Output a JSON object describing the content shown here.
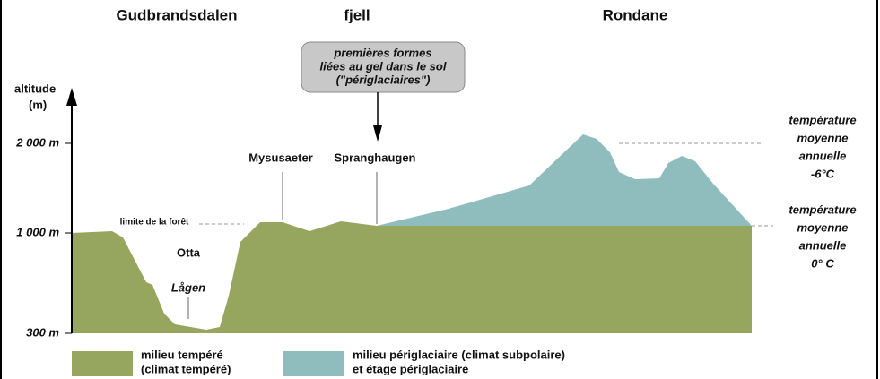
{
  "regions": [
    "Gudbrandsdalen",
    "fjell",
    "Rondane"
  ],
  "callout": [
    "premières formes",
    "liées au gel dans le sol",
    "(\"périglaciaires\")"
  ],
  "axis": {
    "title": [
      "altitude",
      "(m)"
    ],
    "ticks": [
      "2 000 m",
      "1 000 m",
      "300 m"
    ]
  },
  "places": {
    "mysusaeter": "Mysusaeter",
    "spranghaugen": "Spranghaugen",
    "forest_limit": "limite de la forêt",
    "otta": "Otta",
    "lagen": "Lågen"
  },
  "annotations": [
    [
      "température",
      "moyenne",
      "annuelle",
      "-6°C"
    ],
    [
      "température",
      "moyenne",
      "annuelle",
      "0° C"
    ]
  ],
  "legend": [
    {
      "lines": [
        "milieu tempéré",
        "(climat tempéré)"
      ]
    },
    {
      "lines": [
        "milieu périglaciaire (climat subpolaire)",
        "et étage périglaciaire"
      ]
    }
  ]
}
